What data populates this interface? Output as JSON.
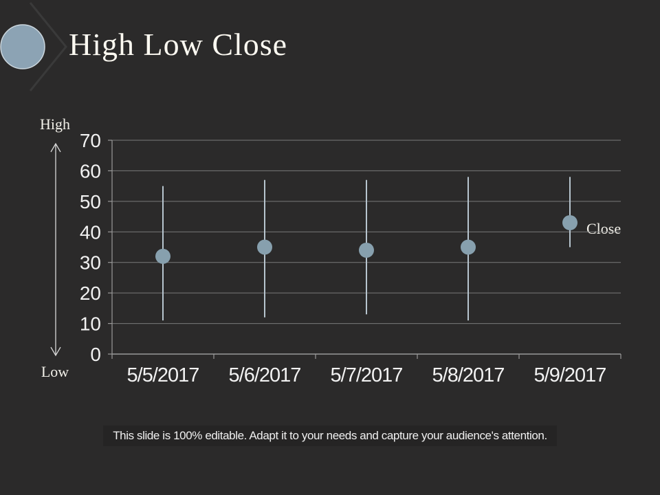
{
  "slide": {
    "title": "High Low Close",
    "footer": "This slide is 100% editable. Adapt it to your needs and capture your audience's attention.",
    "annotations": {
      "high": "High",
      "low": "Low",
      "close": "Close"
    },
    "colors": {
      "background": "#2b2a2a",
      "title_text": "#fcf9f1",
      "decor_circle_fill": "#8ca3b4",
      "decor_circle_stroke": "#ccd7de",
      "decor_chevron": "#3a3a3a",
      "gridline": "#7a7a7a",
      "axis_line": "#9a9a9a",
      "axis_text": "#f2f2f2",
      "hilo_line": "#b7c5cf",
      "close_marker": "#87a0ae",
      "annotation_text": "#f3f1ea",
      "arrow": "#d9d9d9",
      "footer_text": "#f0f0f0"
    }
  },
  "chart_data": {
    "type": "stock-high-low-close",
    "title": "",
    "xlabel": "",
    "ylabel": "",
    "categories": [
      "5/5/2017",
      "5/6/2017",
      "5/7/2017",
      "5/8/2017",
      "5/9/2017"
    ],
    "series": [
      {
        "name": "High",
        "values": [
          55,
          57,
          57,
          58,
          58
        ]
      },
      {
        "name": "Low",
        "values": [
          11,
          12,
          13,
          11,
          35
        ]
      },
      {
        "name": "Close",
        "values": [
          32,
          35,
          34,
          35,
          43
        ]
      }
    ],
    "ylim": [
      0,
      70
    ],
    "yticks": [
      0,
      10,
      20,
      30,
      40,
      50,
      60,
      70
    ],
    "ytick_step": 10,
    "grid": true,
    "legend": "none"
  }
}
